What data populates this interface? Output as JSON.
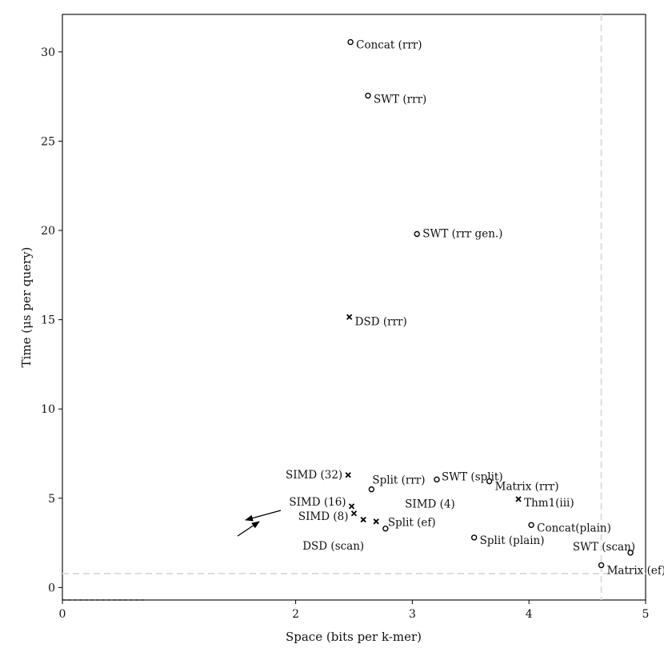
{
  "chart_data": {
    "type": "scatter",
    "title": "",
    "xlabel": "Space (bits per k-mer)",
    "ylabel": "Time (μs per query)",
    "xlim": [
      0,
      5
    ],
    "ylim": [
      -0.7,
      32.1
    ],
    "x_ticks": [
      0,
      2,
      3,
      4,
      5
    ],
    "y_ticks": [
      0,
      5,
      10,
      15,
      20,
      25,
      30
    ],
    "grid": false,
    "legend": "none",
    "reference_lines": [
      {
        "orientation": "vertical",
        "x": 4.62,
        "style": "dashed",
        "color": "#dddddd"
      },
      {
        "orientation": "horizontal",
        "y": 0.78,
        "style": "dashed",
        "color": "#dddddd"
      }
    ],
    "points": [
      {
        "label": "Concat (rrr)",
        "x": 2.47,
        "y": 30.55,
        "marker": "o"
      },
      {
        "label": "SWT (rrr)",
        "x": 2.62,
        "y": 27.55,
        "marker": "o"
      },
      {
        "label": "SWT (rrr gen.)",
        "x": 3.04,
        "y": 19.8,
        "marker": "o"
      },
      {
        "label": "DSD (rrr)",
        "x": 2.46,
        "y": 15.15,
        "marker": "x"
      },
      {
        "label": "SIMD (32)",
        "x": 2.45,
        "y": 6.3,
        "marker": "x"
      },
      {
        "label": "Split (rrr)",
        "x": 2.65,
        "y": 5.5,
        "marker": "o"
      },
      {
        "label": "SWT (split)",
        "x": 3.21,
        "y": 6.05,
        "marker": "o"
      },
      {
        "label": "Matrix (rrr)",
        "x": 3.66,
        "y": 5.95,
        "marker": "o"
      },
      {
        "label": "SIMD (16)",
        "x": 2.48,
        "y": 4.55,
        "marker": "x"
      },
      {
        "label": "SIMD (8)",
        "x": 2.5,
        "y": 4.15,
        "marker": "x"
      },
      {
        "label": "SIMD (4)",
        "x": 2.58,
        "y": 3.8,
        "marker": "x"
      },
      {
        "label": "DSD (scan)",
        "x": 2.69,
        "y": 3.7,
        "marker": "x"
      },
      {
        "label": "Split (ef)",
        "x": 2.77,
        "y": 3.3,
        "marker": "o"
      },
      {
        "label": "Thm1(iii)",
        "x": 3.91,
        "y": 4.95,
        "marker": "x"
      },
      {
        "label": "Split (plain)",
        "x": 3.53,
        "y": 2.8,
        "marker": "o"
      },
      {
        "label": "Concat(plain)",
        "x": 4.02,
        "y": 3.5,
        "marker": "o"
      },
      {
        "label": "SWT (scan)",
        "x": 4.87,
        "y": 1.95,
        "marker": "o"
      },
      {
        "label": "Matrix (ef)",
        "x": 4.62,
        "y": 1.25,
        "marker": "o"
      }
    ]
  }
}
